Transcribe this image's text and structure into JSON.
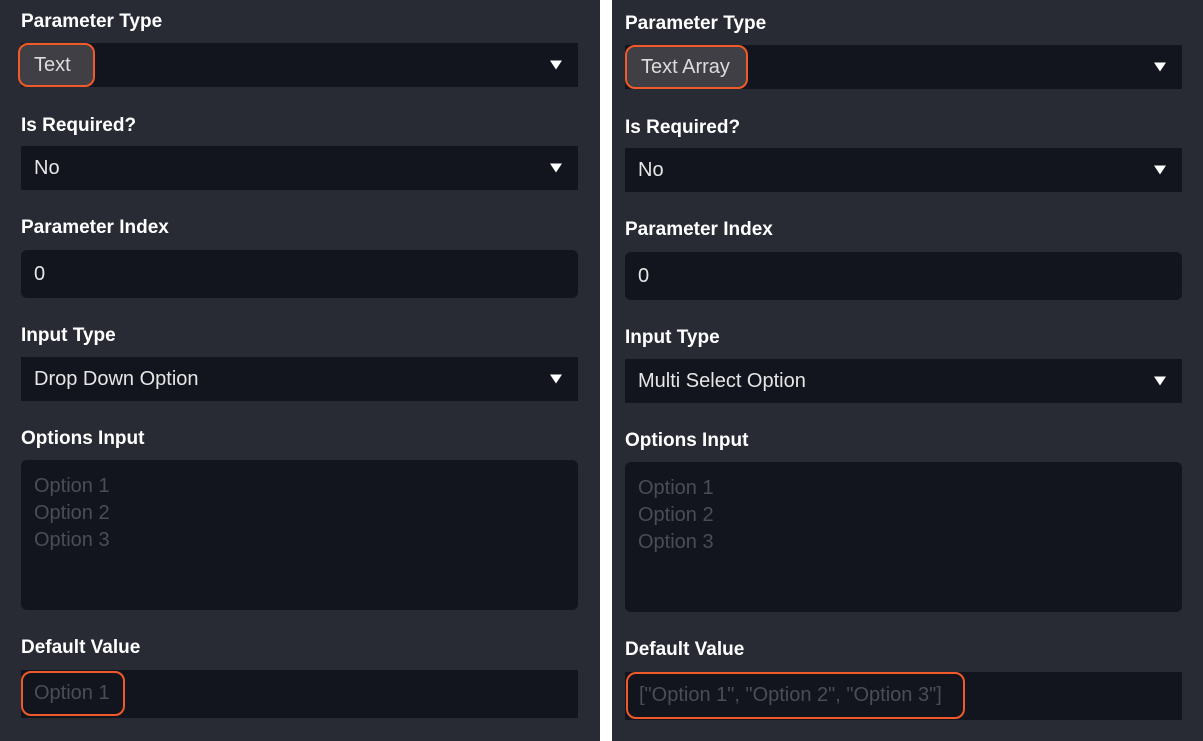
{
  "left": {
    "parameter_type": {
      "label": "Parameter Type",
      "value": "Text"
    },
    "is_required": {
      "label": "Is Required?",
      "value": "No"
    },
    "parameter_index": {
      "label": "Parameter Index",
      "value": "0"
    },
    "input_type": {
      "label": "Input Type",
      "value": "Drop Down Option"
    },
    "options_input": {
      "label": "Options Input",
      "placeholder": [
        "Option 1",
        "Option 2",
        "Option 3"
      ]
    },
    "default_value": {
      "label": "Default Value",
      "placeholder": "Option 1"
    }
  },
  "right": {
    "parameter_type": {
      "label": "Parameter Type",
      "value": "Text Array"
    },
    "is_required": {
      "label": "Is Required?",
      "value": "No"
    },
    "parameter_index": {
      "label": "Parameter Index",
      "value": "0"
    },
    "input_type": {
      "label": "Input Type",
      "value": "Multi Select Option"
    },
    "options_input": {
      "label": "Options Input",
      "placeholder": [
        "Option 1",
        "Option 2",
        "Option 3"
      ]
    },
    "default_value": {
      "label": "Default Value",
      "placeholder": "[\"Option 1\", \"Option 2\", \"Option 3\"]"
    }
  },
  "colors": {
    "highlight": "#f05a28",
    "panel": "#282b34",
    "field": "#12151e"
  }
}
